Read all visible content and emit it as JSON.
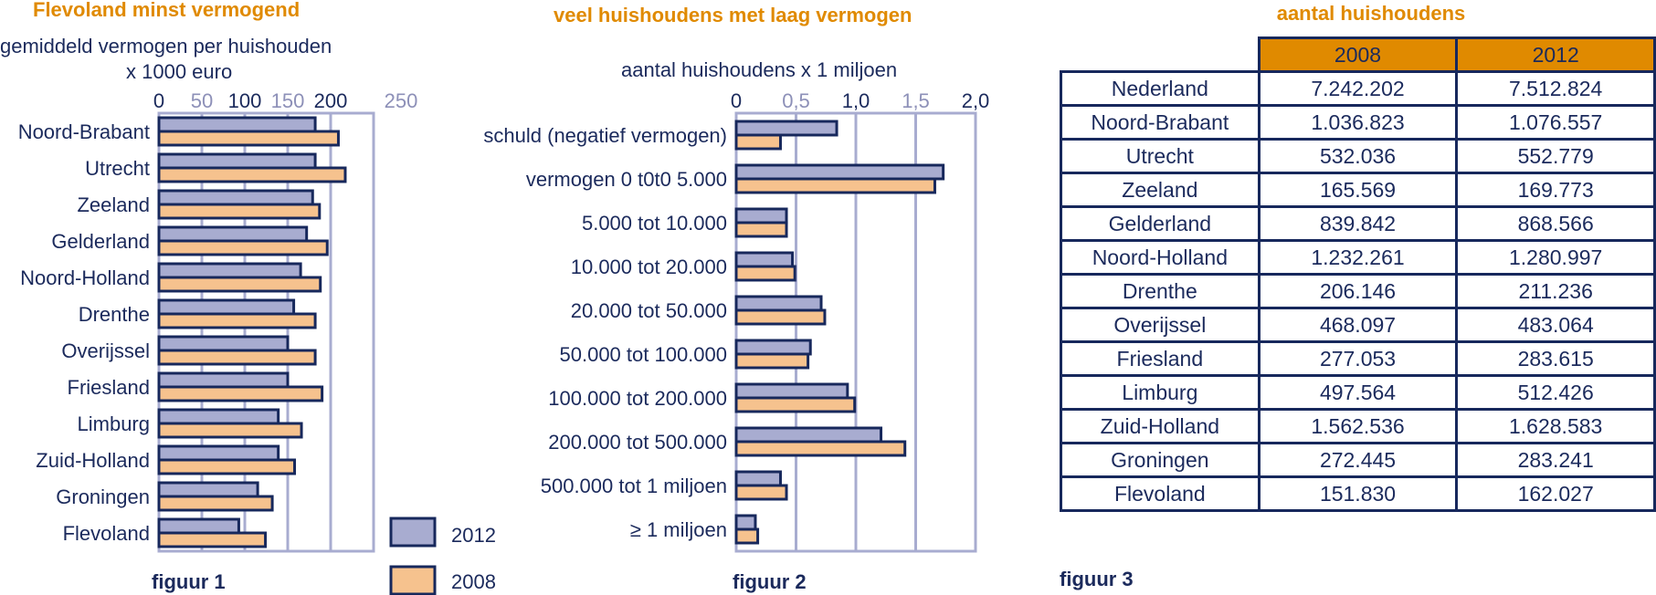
{
  "colors": {
    "s2012": "#a8acd0",
    "s2008": "#f6c28e",
    "border": "#17285c",
    "grid": "#a8acd0",
    "title": "#e08a00",
    "text": "#1b2a5c"
  },
  "chart_data": [
    {
      "type": "bar",
      "orientation": "horizontal",
      "title": "Flevoland minst vermogend",
      "subtitle": "gemiddeld vermogen per huishouden",
      "unit": "x 1000 euro",
      "xlim": [
        0,
        250
      ],
      "ticks": [
        "0",
        "50",
        "100",
        "150",
        "200",
        "250"
      ],
      "categories": [
        "Noord-Brabant",
        "Utrecht",
        "Zeeland",
        "Gelderland",
        "Noord-Holland",
        "Drenthe",
        "Overijssel",
        "Friesland",
        "Limburg",
        "Zuid-Holland",
        "Groningen",
        "Flevoland"
      ],
      "series": [
        {
          "name": "2012",
          "values": [
            182,
            182,
            179,
            172,
            165,
            157,
            150,
            150,
            139,
            139,
            115,
            93
          ]
        },
        {
          "name": "2008",
          "values": [
            209,
            217,
            187,
            196,
            188,
            182,
            182,
            190,
            166,
            158,
            132,
            124
          ]
        }
      ],
      "legend": [
        "2012",
        "2008"
      ],
      "figure_label": "figuur 1"
    },
    {
      "type": "bar",
      "orientation": "horizontal",
      "title": "veel huishoudens met laag vermogen",
      "subtitle": "aantal huishoudens x 1 miljoen",
      "xlim": [
        0,
        2.0
      ],
      "ticks": [
        "0",
        "0,5",
        "1,0",
        "1,5",
        "2,0"
      ],
      "categories": [
        "schuld (negatief vermogen)",
        "vermogen 0 t0t0 5.000",
        "5.000 tot 10.000",
        "10.000 tot 20.000",
        "20.000 tot 50.000",
        "50.000 tot 100.000",
        "100.000 tot 200.000",
        "200.000 tot 500.000",
        "500.000 tot 1 miljoen",
        "≥ 1 miljoen"
      ],
      "series": [
        {
          "name": "2012",
          "values": [
            0.84,
            1.73,
            0.42,
            0.47,
            0.71,
            0.62,
            0.93,
            1.21,
            0.37,
            0.16
          ]
        },
        {
          "name": "2008",
          "values": [
            0.37,
            1.66,
            0.42,
            0.49,
            0.74,
            0.6,
            0.99,
            1.41,
            0.42,
            0.18
          ]
        }
      ],
      "figure_label": "figuur 2"
    },
    {
      "type": "table",
      "title": "aantal huishoudens",
      "columns": [
        "2008",
        "2012"
      ],
      "rows": [
        {
          "region": "Nederland",
          "v2008": "7.242.202",
          "v2012": "7.512.824"
        },
        {
          "region": "Noord-Brabant",
          "v2008": "1.036.823",
          "v2012": "1.076.557"
        },
        {
          "region": "Utrecht",
          "v2008": "532.036",
          "v2012": "552.779"
        },
        {
          "region": "Zeeland",
          "v2008": "165.569",
          "v2012": "169.773"
        },
        {
          "region": "Gelderland",
          "v2008": "839.842",
          "v2012": "868.566"
        },
        {
          "region": "Noord-Holland",
          "v2008": "1.232.261",
          "v2012": "1.280.997"
        },
        {
          "region": "Drenthe",
          "v2008": "206.146",
          "v2012": "211.236"
        },
        {
          "region": "Overijssel",
          "v2008": "468.097",
          "v2012": "483.064"
        },
        {
          "region": "Friesland",
          "v2008": "277.053",
          "v2012": "283.615"
        },
        {
          "region": "Limburg",
          "v2008": "497.564",
          "v2012": "512.426"
        },
        {
          "region": "Zuid-Holland",
          "v2008": "1.562.536",
          "v2012": "1.628.583"
        },
        {
          "region": "Groningen",
          "v2008": "272.445",
          "v2012": "283.241"
        },
        {
          "region": "Flevoland",
          "v2008": "151.830",
          "v2012": "162.027"
        }
      ],
      "figure_label": "figuur 3"
    }
  ]
}
